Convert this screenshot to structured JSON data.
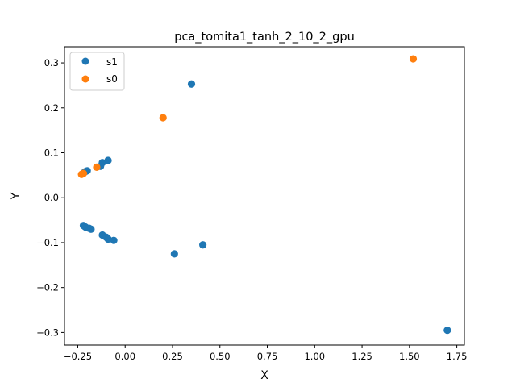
{
  "chart_data": {
    "type": "scatter",
    "title": "pca_tomita1_tanh_2_10_2_gpu",
    "xlabel": "X",
    "ylabel": "Y",
    "xlim": [
      -0.32,
      1.79
    ],
    "ylim": [
      -0.328,
      0.336
    ],
    "x_ticks": [
      -0.25,
      0.0,
      0.25,
      0.5,
      0.75,
      1.0,
      1.25,
      1.5,
      1.75
    ],
    "x_tick_labels": [
      "−0.25",
      "0.00",
      "0.25",
      "0.50",
      "0.75",
      "1.00",
      "1.25",
      "1.50",
      "1.75"
    ],
    "y_ticks": [
      -0.3,
      -0.2,
      -0.1,
      0.0,
      0.1,
      0.2,
      0.3
    ],
    "y_tick_labels": [
      "−0.3",
      "−0.2",
      "−0.1",
      "0.0",
      "0.1",
      "0.2",
      "0.3"
    ],
    "grid": false,
    "legend_position": "upper-left",
    "series": [
      {
        "name": "s1",
        "color": "#1f77b4",
        "points": [
          [
            -0.22,
            0.055
          ],
          [
            -0.21,
            0.058
          ],
          [
            -0.2,
            0.06
          ],
          [
            -0.13,
            0.07
          ],
          [
            -0.12,
            0.078
          ],
          [
            -0.09,
            0.083
          ],
          [
            0.35,
            0.253
          ],
          [
            -0.22,
            -0.062
          ],
          [
            -0.21,
            -0.065
          ],
          [
            -0.19,
            -0.068
          ],
          [
            -0.18,
            -0.07
          ],
          [
            -0.12,
            -0.083
          ],
          [
            -0.1,
            -0.088
          ],
          [
            -0.09,
            -0.092
          ],
          [
            -0.06,
            -0.095
          ],
          [
            0.26,
            -0.125
          ],
          [
            0.41,
            -0.105
          ],
          [
            1.7,
            -0.295
          ]
        ]
      },
      {
        "name": "s0",
        "color": "#ff7f0e",
        "points": [
          [
            -0.23,
            0.052
          ],
          [
            -0.22,
            0.054
          ],
          [
            -0.15,
            0.068
          ],
          [
            0.2,
            0.178
          ],
          [
            1.52,
            0.309
          ]
        ]
      }
    ]
  }
}
